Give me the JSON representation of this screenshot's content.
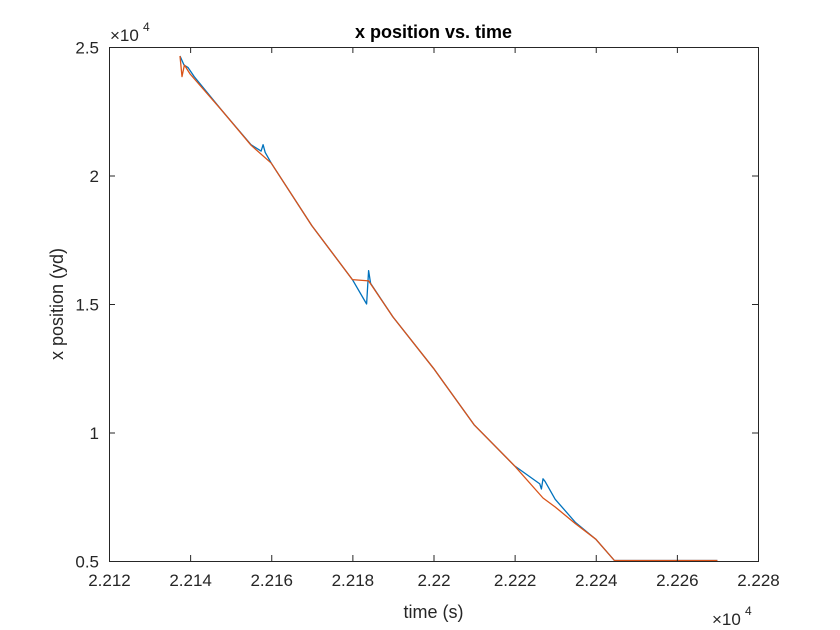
{
  "chart_data": {
    "type": "line",
    "title": "x position vs. time",
    "xlabel": "time (s)",
    "ylabel": "x position (yd)",
    "x_exponent_label": {
      "times": "×10",
      "power": "4"
    },
    "y_exponent_label": {
      "times": "×10",
      "power": "4"
    },
    "xlim": [
      22120,
      22280
    ],
    "ylim": [
      5000,
      25000
    ],
    "xticks": [
      22120,
      22140,
      22160,
      22180,
      22200,
      22220,
      22240,
      22260,
      22280
    ],
    "xtick_labels": [
      "2.212",
      "2.214",
      "2.216",
      "2.218",
      "2.22",
      "2.222",
      "2.224",
      "2.226",
      "2.228"
    ],
    "yticks": [
      5000,
      10000,
      15000,
      20000,
      25000
    ],
    "ytick_labels": [
      "0.5",
      "1",
      "1.5",
      "2",
      "2.5"
    ],
    "grid": false,
    "legend": "none",
    "series": [
      {
        "color": "#0072BD",
        "x": [
          22137.5,
          22138.5,
          22139.5,
          22141,
          22148,
          22155,
          22157.5,
          22158,
          22158.5,
          22160,
          22170,
          22180,
          22183.5,
          22184,
          22184.5,
          22190,
          22200,
          22210,
          22220,
          22226.2,
          22226.6,
          22227.0,
          22227.5,
          22230,
          22235,
          22240,
          22244.6,
          22255,
          22270
        ],
        "y": [
          24650,
          24300,
          24200,
          23850,
          22500,
          21200,
          20950,
          21200,
          20900,
          20480,
          18050,
          15950,
          15000,
          16300,
          15800,
          14500,
          12500,
          10300,
          8700,
          8000,
          7800,
          8200,
          8100,
          7400,
          6500,
          5850,
          5020,
          5020,
          5020
        ]
      },
      {
        "color": "#D95319",
        "x": [
          22137.5,
          22138.0,
          22138.6,
          22140,
          22148,
          22155,
          22160,
          22170,
          22180,
          22184,
          22190,
          22200,
          22210,
          22220,
          22227,
          22230,
          22235,
          22240,
          22244.6,
          22255,
          22270
        ],
        "y": [
          24650,
          23850,
          24300,
          23950,
          22500,
          21180,
          20480,
          18050,
          15950,
          15900,
          14500,
          12500,
          10300,
          8700,
          7450,
          7100,
          6450,
          5850,
          5020,
          5020,
          5020
        ]
      }
    ]
  }
}
